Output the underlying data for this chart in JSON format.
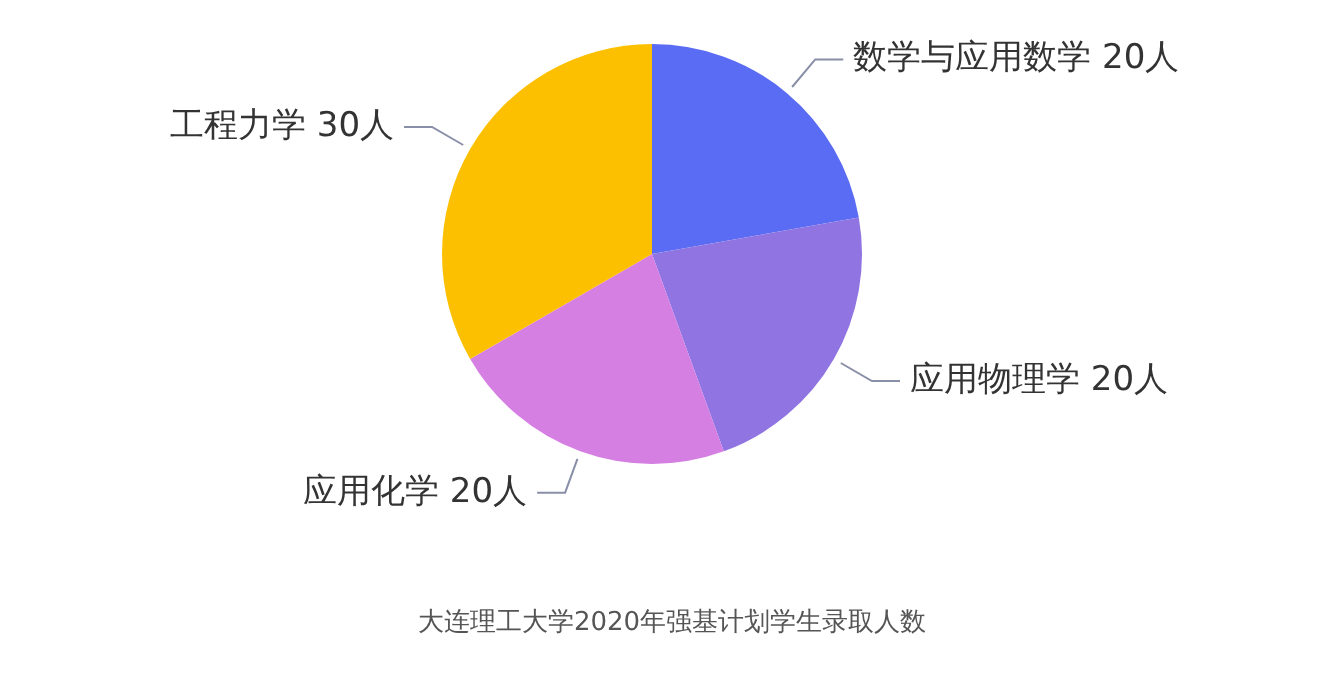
{
  "chart_data": {
    "type": "pie",
    "categories": [
      "数学与应用数学",
      "应用物理学",
      "应用化学",
      "工程力学"
    ],
    "values": [
      20,
      20,
      20,
      30
    ],
    "colors": [
      "#5b6cf4",
      "#8f74e2",
      "#d57fe3",
      "#fdc000"
    ],
    "value_labels": [
      "20人",
      "20人",
      "20人",
      "30人"
    ],
    "legend": false,
    "annotations": [
      "大连理工大学2020年强基计划学生录取人数"
    ]
  }
}
